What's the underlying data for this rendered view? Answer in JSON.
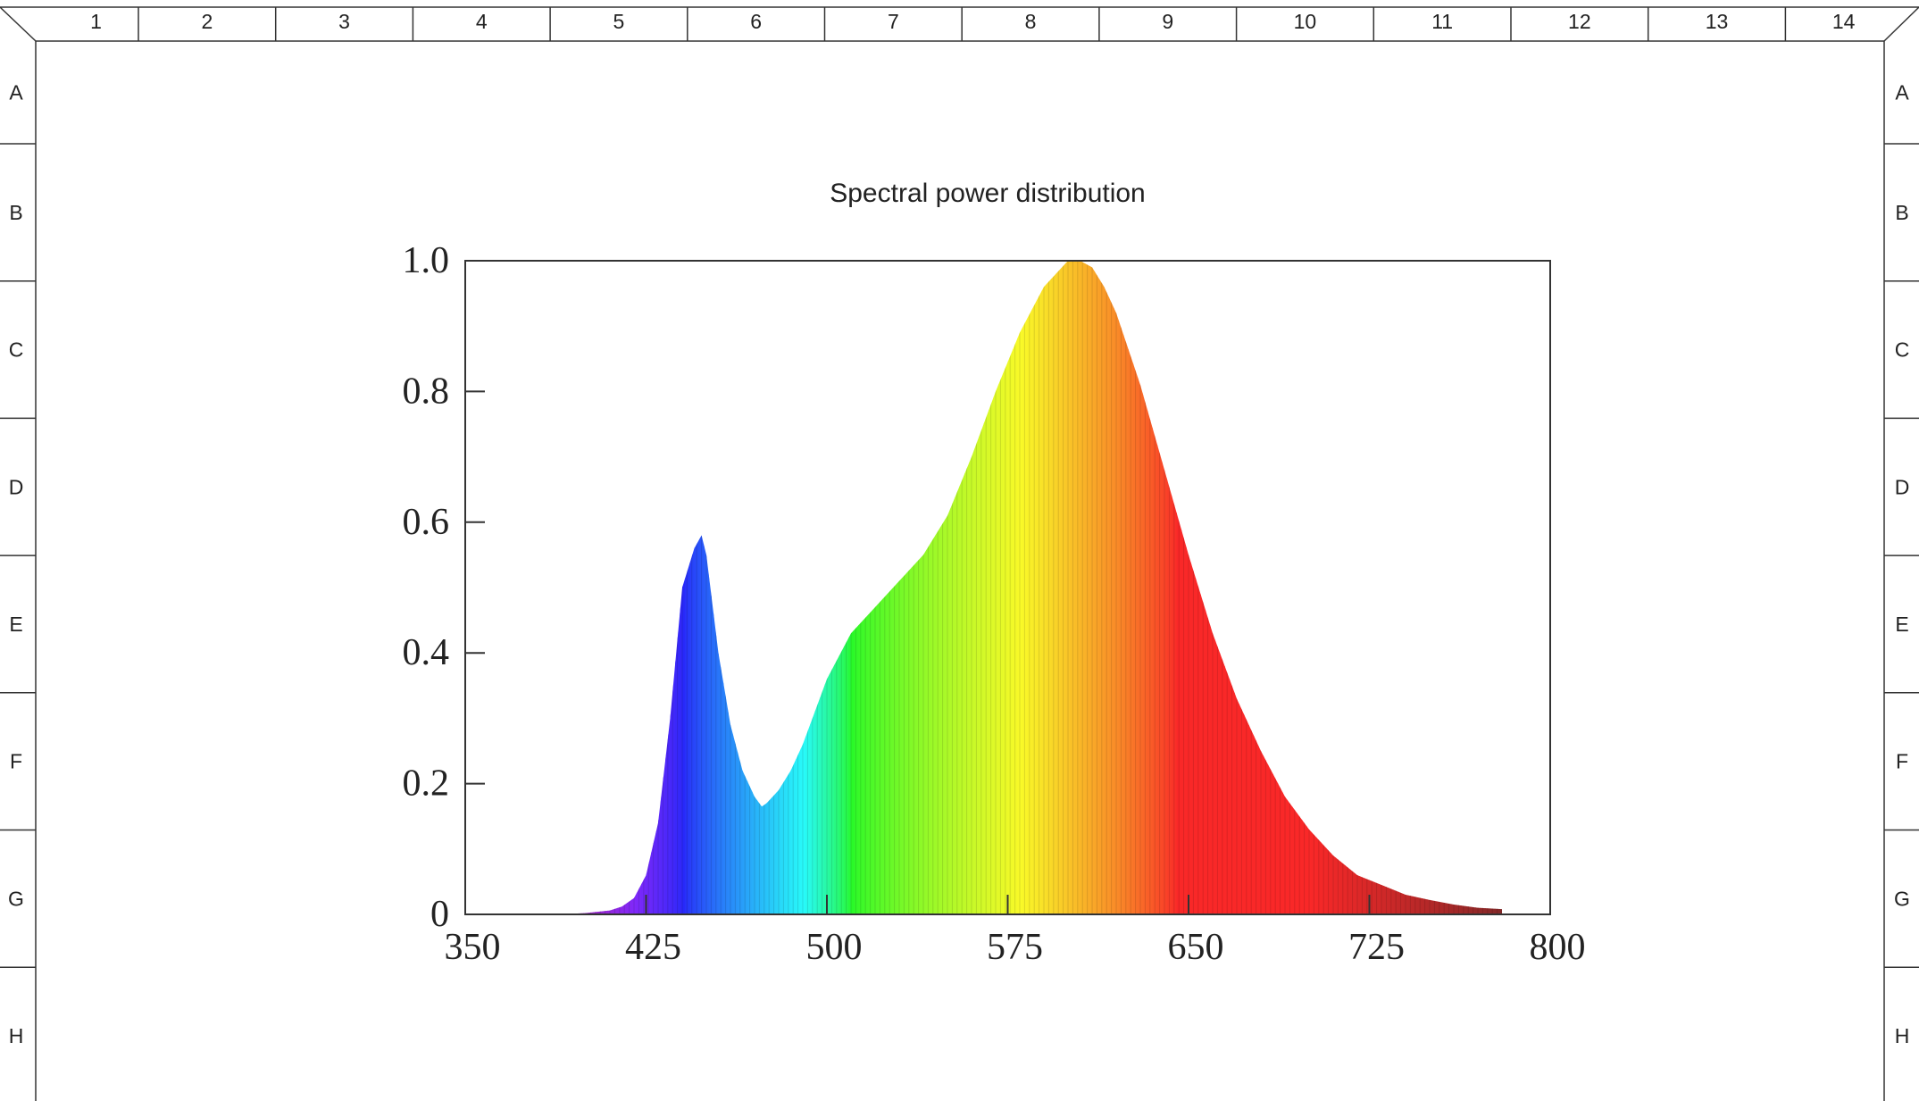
{
  "frame": {
    "columns": [
      "1",
      "2",
      "3",
      "4",
      "5",
      "6",
      "7",
      "8",
      "9",
      "10",
      "11",
      "12",
      "13",
      "14"
    ],
    "rows": [
      "A",
      "B",
      "C",
      "D",
      "E",
      "F",
      "G",
      "H"
    ]
  },
  "chart_data": {
    "type": "area",
    "title": "Spectral power distribution",
    "xlabel": "",
    "ylabel": "",
    "xlim": [
      350,
      800
    ],
    "ylim": [
      0,
      1.0
    ],
    "x_ticks": [
      "350",
      "425",
      "500",
      "575",
      "650",
      "725",
      "800"
    ],
    "y_ticks": [
      "0",
      "0.2",
      "0.4",
      "0.6",
      "0.8",
      "1.0"
    ],
    "grid": false,
    "fill": "visible-spectrum color gradient by wavelength",
    "series": [
      {
        "x": [
          380,
          390,
          400,
          410,
          415,
          420,
          425,
          430,
          435,
          440,
          445,
          448,
          450,
          455,
          460,
          465,
          470,
          473,
          475,
          480,
          485,
          490,
          495,
          500,
          510,
          520,
          530,
          540,
          550,
          560,
          570,
          580,
          590,
          600,
          605,
          610,
          615,
          620,
          630,
          640,
          650,
          660,
          670,
          680,
          690,
          700,
          710,
          720,
          730,
          740,
          750,
          760,
          770,
          780
        ],
        "values": [
          0.0,
          0.0,
          0.002,
          0.006,
          0.012,
          0.025,
          0.06,
          0.14,
          0.3,
          0.5,
          0.56,
          0.58,
          0.55,
          0.4,
          0.29,
          0.22,
          0.18,
          0.165,
          0.17,
          0.19,
          0.22,
          0.26,
          0.31,
          0.36,
          0.43,
          0.47,
          0.51,
          0.55,
          0.61,
          0.7,
          0.8,
          0.89,
          0.96,
          1.0,
          1.0,
          0.99,
          0.96,
          0.92,
          0.81,
          0.68,
          0.55,
          0.43,
          0.33,
          0.25,
          0.18,
          0.13,
          0.09,
          0.06,
          0.045,
          0.03,
          0.022,
          0.015,
          0.01,
          0.008
        ]
      }
    ]
  }
}
